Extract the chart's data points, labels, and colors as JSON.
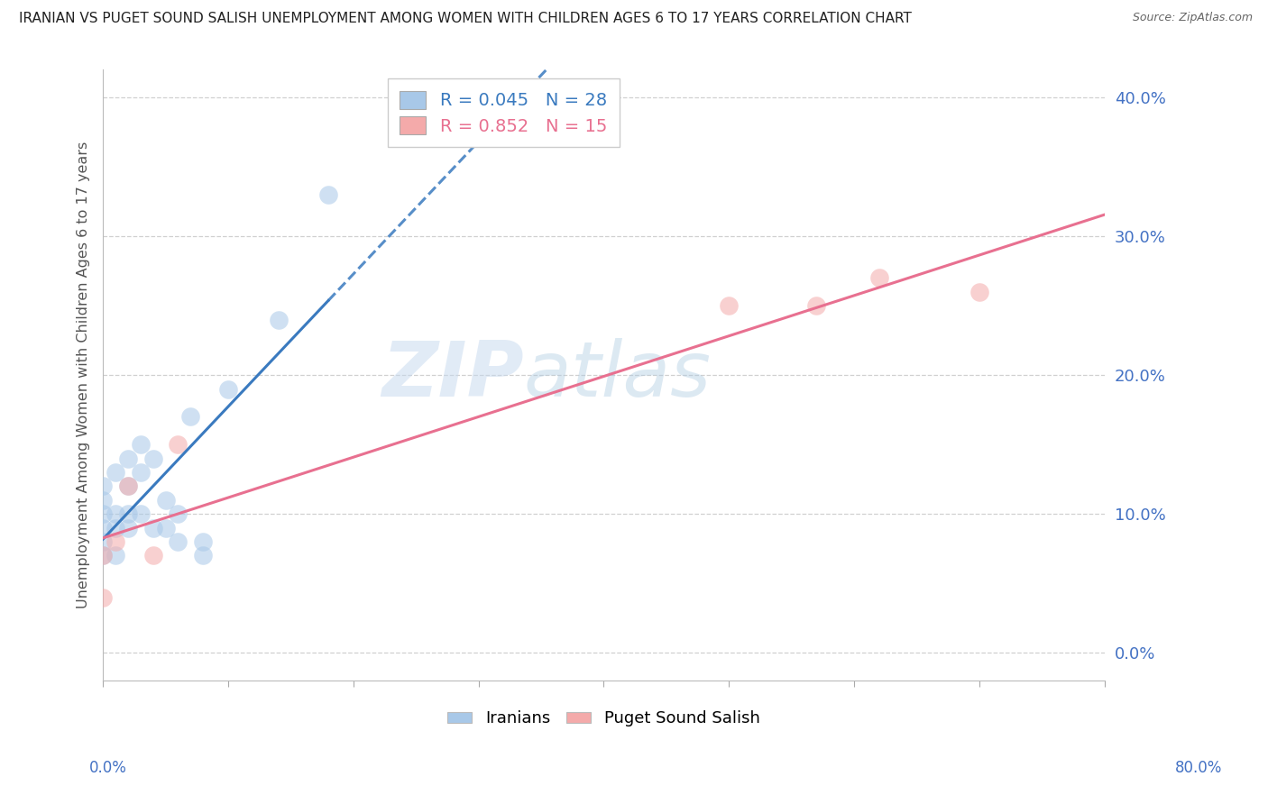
{
  "title": "IRANIAN VS PUGET SOUND SALISH UNEMPLOYMENT AMONG WOMEN WITH CHILDREN AGES 6 TO 17 YEARS CORRELATION CHART",
  "source": "Source: ZipAtlas.com",
  "ylabel": "Unemployment Among Women with Children Ages 6 to 17 years",
  "xlim": [
    0,
    0.8
  ],
  "ylim": [
    -0.02,
    0.42
  ],
  "watermark_zip": "ZIP",
  "watermark_atlas": "atlas",
  "iranian_color": "#a8c8e8",
  "puget_color": "#f4aaaa",
  "iranian_line_color": "#3a7abf",
  "puget_line_color": "#e87090",
  "background_color": "#ffffff",
  "grid_color": "#d0d0d0",
  "title_color": "#222222",
  "tick_color": "#4472c4",
  "source_color": "#666666",
  "iranian_x": [
    0.0,
    0.0,
    0.0,
    0.0,
    0.0,
    0.0,
    0.01,
    0.01,
    0.01,
    0.01,
    0.02,
    0.02,
    0.02,
    0.02,
    0.03,
    0.03,
    0.03,
    0.04,
    0.04,
    0.05,
    0.05,
    0.06,
    0.06,
    0.07,
    0.08,
    0.08,
    0.1,
    0.14,
    0.18
  ],
  "iranian_y": [
    0.07,
    0.08,
    0.09,
    0.1,
    0.11,
    0.12,
    0.07,
    0.09,
    0.1,
    0.13,
    0.09,
    0.1,
    0.12,
    0.14,
    0.1,
    0.13,
    0.15,
    0.09,
    0.14,
    0.09,
    0.11,
    0.08,
    0.1,
    0.17,
    0.07,
    0.08,
    0.19,
    0.24,
    0.33
  ],
  "puget_x": [
    0.0,
    0.0,
    0.01,
    0.02,
    0.04,
    0.06,
    0.5,
    0.57,
    0.62,
    0.7
  ],
  "puget_y": [
    0.04,
    0.07,
    0.08,
    0.12,
    0.07,
    0.15,
    0.25,
    0.25,
    0.27,
    0.26
  ],
  "yticks": [
    0.0,
    0.1,
    0.2,
    0.3,
    0.4
  ],
  "xtick_positions": [
    0.0,
    0.1,
    0.2,
    0.3,
    0.4,
    0.5,
    0.6,
    0.7,
    0.8
  ]
}
